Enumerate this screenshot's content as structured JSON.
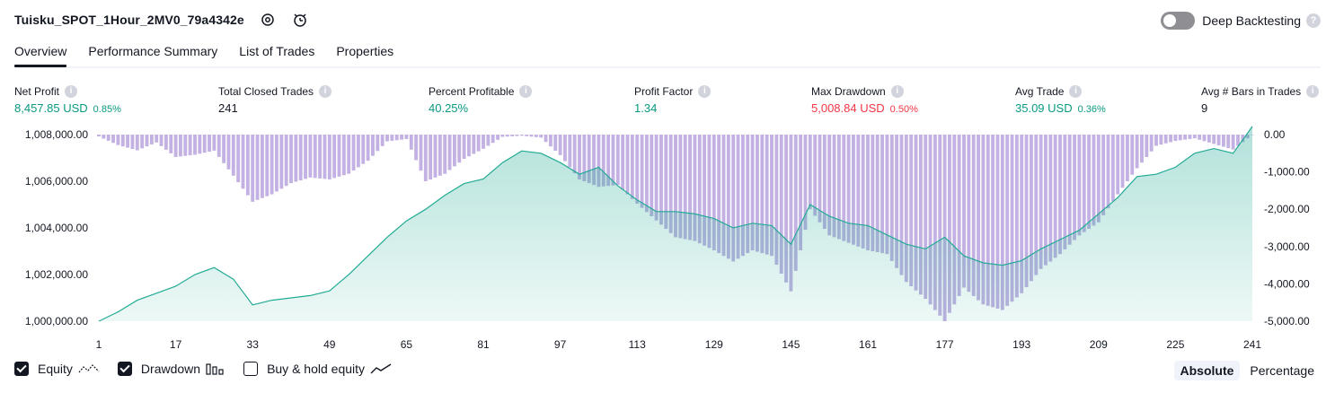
{
  "header": {
    "title": "Tuisku_SPOT_1Hour_2MV0_79a4342e",
    "deep_backtesting_label": "Deep Backtesting",
    "deep_backtesting_enabled": false
  },
  "tabs": [
    {
      "label": "Overview",
      "active": true
    },
    {
      "label": "Performance Summary",
      "active": false
    },
    {
      "label": "List of Trades",
      "active": false
    },
    {
      "label": "Properties",
      "active": false
    }
  ],
  "metrics": [
    {
      "label": "Net Profit",
      "value": "8,457.85 USD",
      "pct": "0.85%",
      "color": "#089981"
    },
    {
      "label": "Total Closed Trades",
      "value": "241",
      "pct": "",
      "color": "#131722"
    },
    {
      "label": "Percent Profitable",
      "value": "40.25%",
      "pct": "",
      "color": "#089981"
    },
    {
      "label": "Profit Factor",
      "value": "1.34",
      "pct": "",
      "color": "#089981"
    },
    {
      "label": "Max Drawdown",
      "value": "5,008.84 USD",
      "pct": "0.50%",
      "color": "#f23645"
    },
    {
      "label": "Avg Trade",
      "value": "35.09 USD",
      "pct": "0.36%",
      "color": "#089981"
    },
    {
      "label": "Avg # Bars in Trades",
      "value": "9",
      "pct": "",
      "color": "#131722"
    }
  ],
  "chart_data": {
    "type": "area",
    "x_ticks": [
      "1",
      "17",
      "33",
      "49",
      "65",
      "81",
      "97",
      "113",
      "129",
      "145",
      "161",
      "177",
      "193",
      "209",
      "225",
      "241"
    ],
    "x_range": [
      1,
      241
    ],
    "left_axis": {
      "ticks": [
        "1,008,000.00",
        "1,006,000.00",
        "1,004,000.00",
        "1,002,000.00",
        "1,000,000.00"
      ],
      "range": [
        1000000,
        1008000
      ]
    },
    "right_axis": {
      "ticks": [
        "0.00",
        "-1,000.00",
        "-2,000.00",
        "-3,000.00",
        "-4,000.00",
        "-5,000.00"
      ],
      "range": [
        -5000,
        0
      ]
    },
    "series": [
      {
        "name": "Equity",
        "type": "area",
        "color": "#22ab94",
        "points": [
          [
            1,
            1000000
          ],
          [
            5,
            1000400
          ],
          [
            9,
            1000900
          ],
          [
            13,
            1001200
          ],
          [
            17,
            1001500
          ],
          [
            21,
            1002000
          ],
          [
            25,
            1002300
          ],
          [
            29,
            1001800
          ],
          [
            33,
            1000700
          ],
          [
            37,
            1000900
          ],
          [
            41,
            1001000
          ],
          [
            45,
            1001100
          ],
          [
            49,
            1001300
          ],
          [
            53,
            1002000
          ],
          [
            57,
            1002800
          ],
          [
            61,
            1003600
          ],
          [
            65,
            1004300
          ],
          [
            69,
            1004800
          ],
          [
            73,
            1005400
          ],
          [
            77,
            1005900
          ],
          [
            81,
            1006100
          ],
          [
            85,
            1006800
          ],
          [
            89,
            1007300
          ],
          [
            93,
            1007200
          ],
          [
            97,
            1006800
          ],
          [
            101,
            1006300
          ],
          [
            105,
            1006600
          ],
          [
            109,
            1005800
          ],
          [
            113,
            1005200
          ],
          [
            117,
            1004700
          ],
          [
            121,
            1004700
          ],
          [
            125,
            1004600
          ],
          [
            129,
            1004400
          ],
          [
            133,
            1004000
          ],
          [
            137,
            1004200
          ],
          [
            141,
            1004100
          ],
          [
            145,
            1003300
          ],
          [
            149,
            1005000
          ],
          [
            153,
            1004500
          ],
          [
            157,
            1004200
          ],
          [
            161,
            1004100
          ],
          [
            165,
            1003700
          ],
          [
            169,
            1003300
          ],
          [
            173,
            1003100
          ],
          [
            177,
            1003600
          ],
          [
            181,
            1002800
          ],
          [
            185,
            1002500
          ],
          [
            189,
            1002400
          ],
          [
            193,
            1002600
          ],
          [
            197,
            1003100
          ],
          [
            201,
            1003500
          ],
          [
            205,
            1003900
          ],
          [
            209,
            1004600
          ],
          [
            213,
            1005300
          ],
          [
            217,
            1006200
          ],
          [
            221,
            1006300
          ],
          [
            225,
            1006600
          ],
          [
            229,
            1007200
          ],
          [
            233,
            1007400
          ],
          [
            237,
            1007200
          ],
          [
            241,
            1008350
          ]
        ]
      },
      {
        "name": "Drawdown",
        "type": "bar",
        "color": "#b39ddb",
        "points": [
          [
            1,
            -50
          ],
          [
            5,
            -280
          ],
          [
            9,
            -420
          ],
          [
            13,
            -210
          ],
          [
            17,
            -600
          ],
          [
            21,
            -540
          ],
          [
            25,
            -430
          ],
          [
            29,
            -1100
          ],
          [
            33,
            -1800
          ],
          [
            37,
            -1600
          ],
          [
            41,
            -1300
          ],
          [
            45,
            -1150
          ],
          [
            49,
            -1200
          ],
          [
            53,
            -1050
          ],
          [
            57,
            -700
          ],
          [
            61,
            -180
          ],
          [
            65,
            -120
          ],
          [
            69,
            -1250
          ],
          [
            73,
            -1050
          ],
          [
            77,
            -650
          ],
          [
            81,
            -380
          ],
          [
            85,
            -60
          ],
          [
            89,
            -30
          ],
          [
            93,
            -80
          ],
          [
            97,
            -550
          ],
          [
            101,
            -1200
          ],
          [
            105,
            -1400
          ],
          [
            109,
            -1350
          ],
          [
            113,
            -1850
          ],
          [
            117,
            -2300
          ],
          [
            121,
            -2750
          ],
          [
            125,
            -2850
          ],
          [
            129,
            -3100
          ],
          [
            133,
            -3400
          ],
          [
            137,
            -3100
          ],
          [
            141,
            -3250
          ],
          [
            145,
            -4200
          ],
          [
            149,
            -2000
          ],
          [
            153,
            -2700
          ],
          [
            157,
            -2900
          ],
          [
            161,
            -3100
          ],
          [
            165,
            -3200
          ],
          [
            169,
            -3950
          ],
          [
            173,
            -4400
          ],
          [
            177,
            -5000
          ],
          [
            181,
            -4100
          ],
          [
            185,
            -4550
          ],
          [
            189,
            -4700
          ],
          [
            193,
            -4250
          ],
          [
            197,
            -3600
          ],
          [
            201,
            -3200
          ],
          [
            205,
            -2700
          ],
          [
            209,
            -2350
          ],
          [
            213,
            -1600
          ],
          [
            217,
            -900
          ],
          [
            221,
            -300
          ],
          [
            225,
            -170
          ],
          [
            229,
            -100
          ],
          [
            233,
            -250
          ],
          [
            237,
            -400
          ],
          [
            241,
            0
          ]
        ]
      }
    ]
  },
  "legend": {
    "equity": {
      "label": "Equity",
      "checked": true
    },
    "drawdown": {
      "label": "Drawdown",
      "checked": true
    },
    "buyhold": {
      "label": "Buy & hold equity",
      "checked": false
    }
  },
  "mode": {
    "absolute": "Absolute",
    "percentage": "Percentage",
    "active": "Absolute"
  }
}
